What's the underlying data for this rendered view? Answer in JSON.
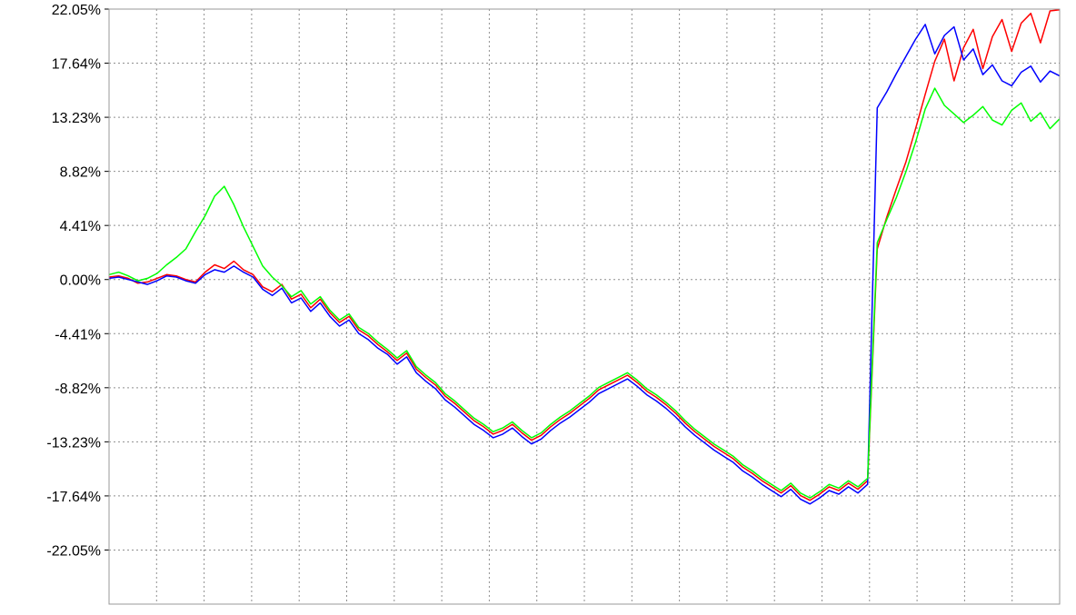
{
  "chart_data": {
    "type": "line",
    "title": "",
    "xlabel": "",
    "ylabel": "",
    "ylim": [
      -26.46,
      22.05
    ],
    "yticks": [
      "22.05%",
      "17.64%",
      "13.23%",
      "8.82%",
      "4.41%",
      "0.00%",
      "-4.41%",
      "-8.82%",
      "-13.23%",
      "-17.64%",
      "-22.05%"
    ],
    "ytick_values": [
      22.05,
      17.64,
      13.23,
      8.82,
      4.41,
      0.0,
      -4.41,
      -8.82,
      -13.23,
      -17.64,
      -22.05
    ],
    "grid": true,
    "legend": "none",
    "x": [
      1,
      2,
      3,
      4,
      5,
      6,
      7,
      8,
      9,
      10,
      11,
      12,
      13,
      14,
      15,
      16,
      17,
      18,
      19,
      20,
      21,
      22,
      23,
      24,
      25,
      26,
      27,
      28,
      29,
      30,
      31,
      32,
      33,
      34,
      35,
      36,
      37,
      38,
      39,
      40,
      41,
      42,
      43,
      44,
      45,
      46,
      47,
      48,
      49,
      50,
      51,
      52,
      53,
      54,
      55,
      56,
      57,
      58,
      59,
      60,
      61,
      62,
      63,
      64,
      65,
      66,
      67,
      68,
      69,
      70,
      71,
      72,
      73,
      74,
      75,
      76,
      77,
      78,
      79,
      80,
      81,
      82,
      83,
      84,
      85,
      86,
      87,
      88,
      89,
      90,
      91,
      92,
      93,
      94,
      95,
      96,
      97,
      98,
      99,
      100
    ],
    "series": [
      {
        "color": "#ff0000",
        "values": [
          0.2,
          0.3,
          0.1,
          -0.3,
          -0.2,
          0.1,
          0.4,
          0.3,
          0.0,
          -0.2,
          0.6,
          1.2,
          0.9,
          1.5,
          0.8,
          0.4,
          -0.6,
          -1.0,
          -0.4,
          -1.6,
          -1.2,
          -2.3,
          -1.6,
          -2.7,
          -3.5,
          -3.0,
          -4.1,
          -4.6,
          -5.3,
          -5.9,
          -6.6,
          -6.0,
          -7.3,
          -8.0,
          -8.6,
          -9.5,
          -10.1,
          -10.8,
          -11.5,
          -12.0,
          -12.6,
          -12.3,
          -11.8,
          -12.5,
          -13.1,
          -12.7,
          -12.0,
          -11.4,
          -10.9,
          -10.3,
          -9.7,
          -9.0,
          -8.6,
          -8.2,
          -7.8,
          -8.4,
          -9.1,
          -9.6,
          -10.2,
          -10.9,
          -11.7,
          -12.4,
          -13.0,
          -13.6,
          -14.1,
          -14.6,
          -15.3,
          -15.8,
          -16.4,
          -16.9,
          -17.4,
          -16.8,
          -17.6,
          -18.0,
          -17.5,
          -16.9,
          -17.2,
          -16.6,
          -17.1,
          -16.4,
          2.5,
          5.1,
          7.4,
          9.6,
          12.3,
          15.1,
          17.8,
          19.6,
          16.2,
          18.9,
          20.4,
          17.2,
          19.8,
          21.2,
          18.6,
          20.9,
          21.7,
          19.3,
          21.9,
          22.0
        ]
      },
      {
        "color": "#0000ff",
        "values": [
          0.1,
          0.2,
          0.0,
          -0.2,
          -0.4,
          -0.1,
          0.3,
          0.2,
          -0.1,
          -0.3,
          0.4,
          0.8,
          0.6,
          1.1,
          0.6,
          0.2,
          -0.8,
          -1.3,
          -0.7,
          -1.9,
          -1.5,
          -2.6,
          -1.9,
          -3.0,
          -3.8,
          -3.3,
          -4.4,
          -4.9,
          -5.6,
          -6.1,
          -6.9,
          -6.3,
          -7.6,
          -8.3,
          -8.9,
          -9.8,
          -10.4,
          -11.1,
          -11.8,
          -12.3,
          -12.9,
          -12.6,
          -12.1,
          -12.8,
          -13.4,
          -13.0,
          -12.3,
          -11.7,
          -11.2,
          -10.6,
          -10.0,
          -9.3,
          -8.9,
          -8.5,
          -8.1,
          -8.7,
          -9.4,
          -9.9,
          -10.5,
          -11.2,
          -12.0,
          -12.7,
          -13.3,
          -13.9,
          -14.4,
          -14.9,
          -15.6,
          -16.1,
          -16.7,
          -17.2,
          -17.7,
          -17.1,
          -17.9,
          -18.3,
          -17.8,
          -17.2,
          -17.5,
          -16.9,
          -17.4,
          -16.7,
          14.0,
          15.3,
          16.8,
          18.2,
          19.6,
          20.8,
          18.4,
          19.9,
          20.6,
          17.9,
          18.8,
          16.7,
          17.5,
          16.2,
          15.8,
          16.9,
          17.4,
          16.1,
          17.0,
          16.6
        ]
      },
      {
        "color": "#00ff00",
        "values": [
          0.4,
          0.6,
          0.3,
          -0.1,
          0.1,
          0.5,
          1.2,
          1.8,
          2.5,
          3.9,
          5.2,
          6.8,
          7.6,
          6.1,
          4.3,
          2.7,
          1.1,
          0.2,
          -0.5,
          -1.4,
          -0.9,
          -2.0,
          -1.4,
          -2.5,
          -3.3,
          -2.8,
          -3.9,
          -4.4,
          -5.1,
          -5.7,
          -6.4,
          -5.8,
          -7.1,
          -7.8,
          -8.4,
          -9.3,
          -9.9,
          -10.6,
          -11.3,
          -11.8,
          -12.4,
          -12.1,
          -11.6,
          -12.3,
          -12.9,
          -12.5,
          -11.8,
          -11.2,
          -10.7,
          -10.1,
          -9.5,
          -8.8,
          -8.4,
          -8.0,
          -7.6,
          -8.2,
          -8.9,
          -9.4,
          -10.0,
          -10.7,
          -11.5,
          -12.2,
          -12.8,
          -13.4,
          -13.9,
          -14.4,
          -15.1,
          -15.6,
          -16.2,
          -16.7,
          -17.2,
          -16.6,
          -17.4,
          -17.8,
          -17.3,
          -16.7,
          -17.0,
          -16.4,
          -16.9,
          -16.2,
          3.0,
          4.9,
          6.7,
          8.8,
          11.2,
          13.9,
          15.6,
          14.2,
          13.5,
          12.8,
          13.4,
          14.1,
          13.0,
          12.6,
          13.8,
          14.4,
          12.9,
          13.6,
          12.3,
          13.1
        ]
      }
    ]
  }
}
